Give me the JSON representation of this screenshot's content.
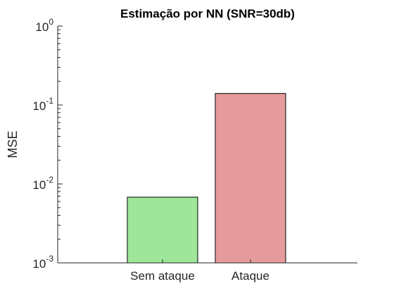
{
  "chart_data": {
    "type": "bar",
    "title": "Estimação por NN (SNR=30db)",
    "xlabel": "",
    "ylabel": "MSE",
    "yscale": "log",
    "ylim": [
      0.001,
      1
    ],
    "yticks": [
      {
        "value": 0.001,
        "base": "10",
        "exp": "-3"
      },
      {
        "value": 0.01,
        "base": "10",
        "exp": "-2"
      },
      {
        "value": 0.1,
        "base": "10",
        "exp": "-1"
      },
      {
        "value": 1,
        "base": "10",
        "exp": "0"
      }
    ],
    "categories": [
      "Sem ataque",
      "Ataque"
    ],
    "values": [
      0.0068,
      0.14
    ],
    "colors": [
      "#9de69a",
      "#e59b9b"
    ],
    "grid": false,
    "legend": "none"
  }
}
